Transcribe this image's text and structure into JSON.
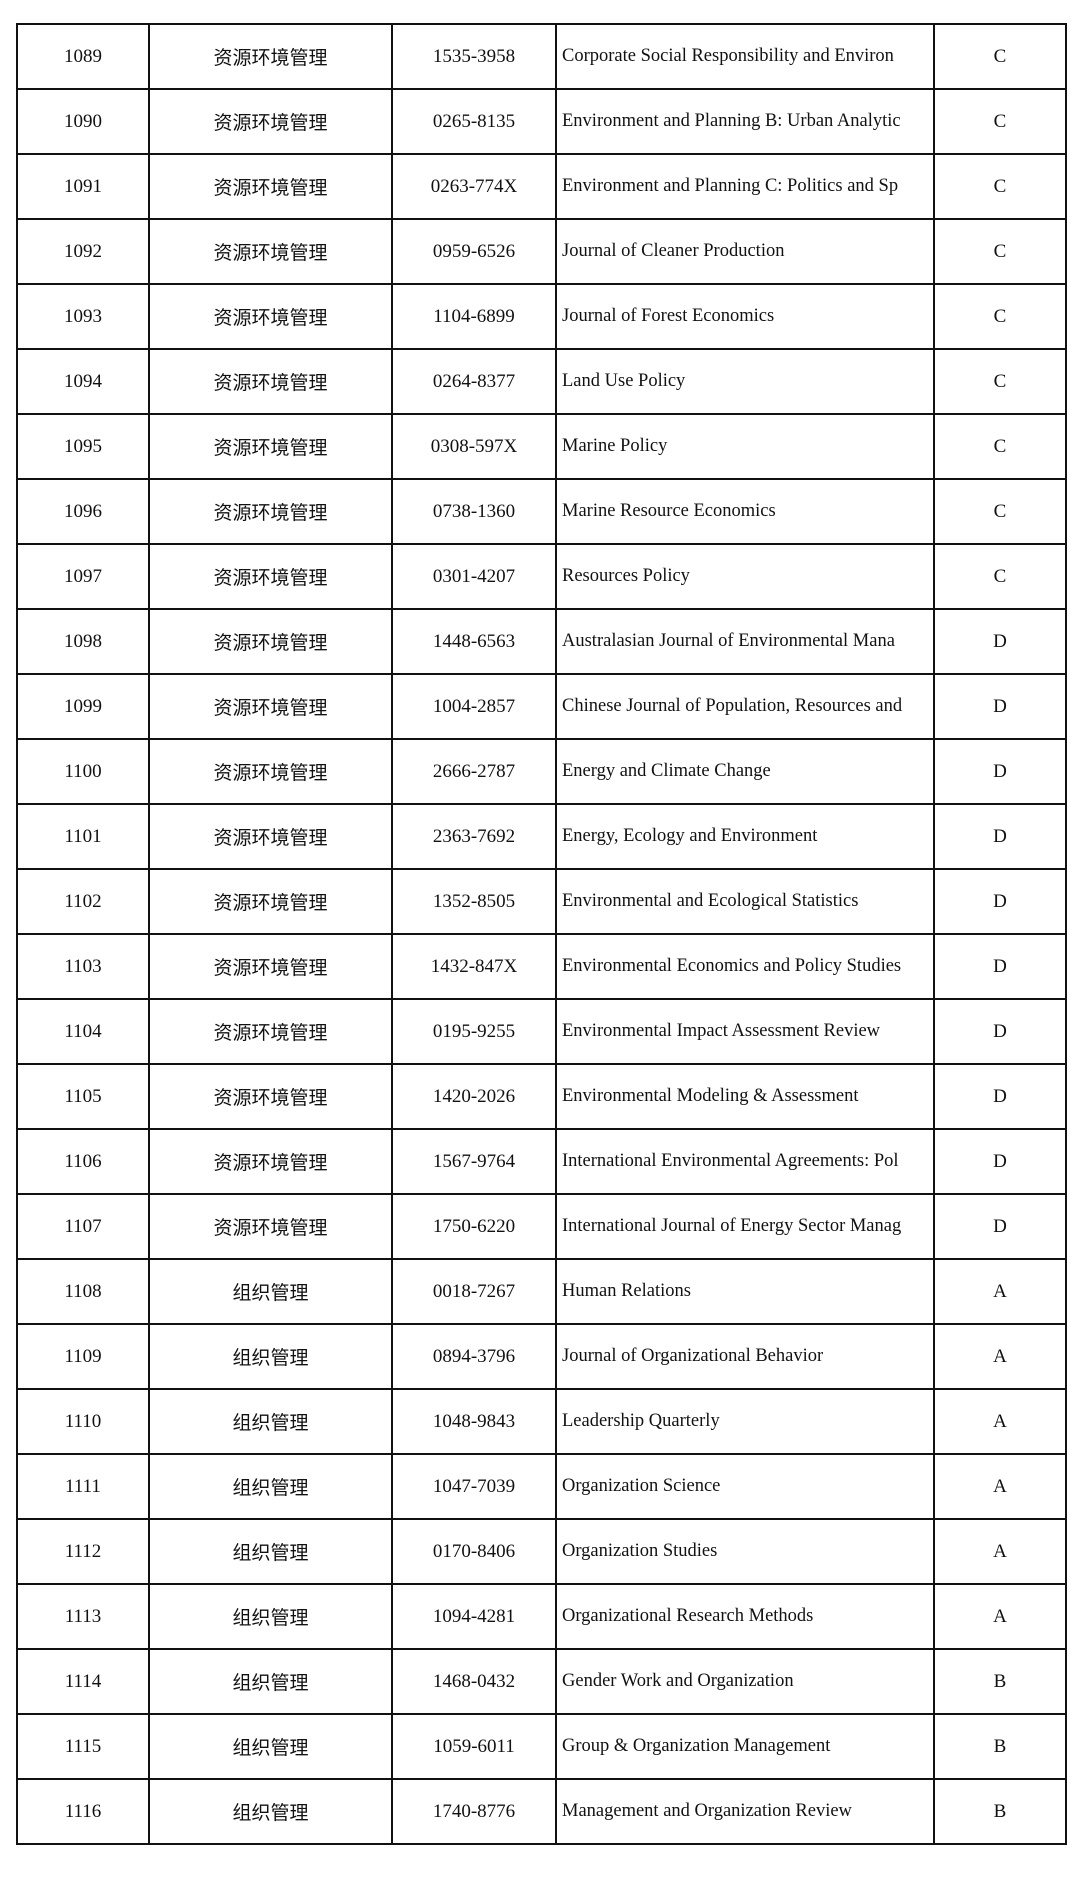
{
  "table": {
    "rows": [
      [
        "1089",
        "资源环境管理",
        "1535-3958",
        "Corporate Social Responsibility and Environ",
        "C"
      ],
      [
        "1090",
        "资源环境管理",
        "0265-8135",
        "Environment and Planning B: Urban Analytic",
        "C"
      ],
      [
        "1091",
        "资源环境管理",
        "0263-774X",
        "Environment and Planning C: Politics and Sp",
        "C"
      ],
      [
        "1092",
        "资源环境管理",
        "0959-6526",
        "Journal of Cleaner Production",
        "C"
      ],
      [
        "1093",
        "资源环境管理",
        "1104-6899",
        "Journal of Forest Economics",
        "C"
      ],
      [
        "1094",
        "资源环境管理",
        "0264-8377",
        "Land Use Policy",
        "C"
      ],
      [
        "1095",
        "资源环境管理",
        "0308-597X",
        "Marine Policy",
        "C"
      ],
      [
        "1096",
        "资源环境管理",
        "0738-1360",
        "Marine Resource Economics",
        "C"
      ],
      [
        "1097",
        "资源环境管理",
        "0301-4207",
        "Resources Policy",
        "C"
      ],
      [
        "1098",
        "资源环境管理",
        "1448-6563",
        "Australasian Journal of Environmental Mana",
        "D"
      ],
      [
        "1099",
        "资源环境管理",
        "1004-2857",
        "Chinese Journal of Population, Resources and",
        "D"
      ],
      [
        "1100",
        "资源环境管理",
        "2666-2787",
        "Energy and Climate Change",
        "D"
      ],
      [
        "1101",
        "资源环境管理",
        "2363-7692",
        "Energy, Ecology and Environment",
        "D"
      ],
      [
        "1102",
        "资源环境管理",
        "1352-8505",
        "Environmental and Ecological Statistics",
        "D"
      ],
      [
        "1103",
        "资源环境管理",
        "1432-847X",
        "Environmental Economics and Policy Studies",
        "D"
      ],
      [
        "1104",
        "资源环境管理",
        "0195-9255",
        "Environmental Impact Assessment Review",
        "D"
      ],
      [
        "1105",
        "资源环境管理",
        "1420-2026",
        "Environmental Modeling & Assessment",
        "D"
      ],
      [
        "1106",
        "资源环境管理",
        "1567-9764",
        "International Environmental Agreements: Pol",
        "D"
      ],
      [
        "1107",
        "资源环境管理",
        "1750-6220",
        "International Journal of Energy Sector Manag",
        "D"
      ],
      [
        "1108",
        "组织管理",
        "0018-7267",
        "Human Relations",
        "A"
      ],
      [
        "1109",
        "组织管理",
        "0894-3796",
        "Journal of Organizational Behavior",
        "A"
      ],
      [
        "1110",
        "组织管理",
        "1048-9843",
        "Leadership Quarterly",
        "A"
      ],
      [
        "1111",
        "组织管理",
        "1047-7039",
        "Organization Science",
        "A"
      ],
      [
        "1112",
        "组织管理",
        "0170-8406",
        "Organization Studies",
        "A"
      ],
      [
        "1113",
        "组织管理",
        "1094-4281",
        "Organizational Research Methods",
        "A"
      ],
      [
        "1114",
        "组织管理",
        "1468-0432",
        "Gender Work and Organization",
        "B"
      ],
      [
        "1115",
        "组织管理",
        "1059-6011",
        "Group & Organization Management",
        "B"
      ],
      [
        "1116",
        "组织管理",
        "1740-8776",
        "Management and Organization Review",
        "B"
      ]
    ]
  }
}
